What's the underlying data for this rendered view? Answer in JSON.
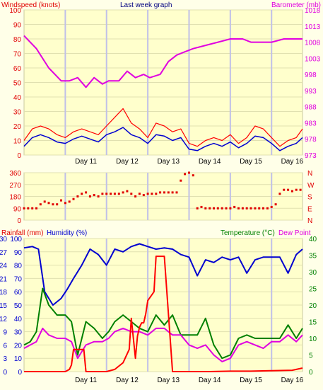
{
  "chart_data": [
    {
      "type": "line",
      "title": "Last week graph",
      "left_axis_label": "Windspeed (knots)",
      "right_axis_label": "Barometer (mb)",
      "left_ticks": [
        "0",
        "10",
        "20",
        "30",
        "40",
        "50",
        "60",
        "70",
        "80",
        "90",
        "100"
      ],
      "right_ticks": [
        "973",
        "978",
        "983",
        "988",
        "993",
        "998",
        "1003",
        "1008",
        "1013",
        "1018"
      ],
      "x_ticks": [
        "Day 11",
        "Day 12",
        "Day 13",
        "Day 14",
        "Day 15",
        "Day 16"
      ],
      "x_range_days": [
        10.0,
        16.75
      ],
      "left_range": [
        0,
        100
      ],
      "right_range": [
        973,
        1018
      ],
      "colors": {
        "barometer": "#e000e0",
        "gust": "#ff0000",
        "wind": "#0000d0"
      },
      "series": [
        {
          "key": "barometer",
          "x": [
            10.0,
            10.3,
            10.6,
            10.9,
            11.1,
            11.3,
            11.5,
            11.7,
            11.9,
            12.05,
            12.3,
            12.5,
            12.7,
            12.9,
            13.05,
            13.3,
            13.5,
            13.7,
            13.9,
            14.1,
            14.4,
            14.7,
            15.0,
            15.3,
            15.5,
            15.7,
            16.0,
            16.3,
            16.55,
            16.75
          ],
          "y": [
            1010,
            1006,
            1000,
            996,
            996,
            997,
            994,
            997,
            995,
            996,
            996,
            999,
            997,
            998,
            997,
            998,
            1002,
            1004,
            1005,
            1006,
            1007,
            1008,
            1009,
            1009,
            1008,
            1008,
            1008,
            1009,
            1009,
            1009
          ]
        },
        {
          "key": "gust",
          "x": [
            10.0,
            10.2,
            10.4,
            10.6,
            10.8,
            11.0,
            11.2,
            11.4,
            11.6,
            11.8,
            12.0,
            12.2,
            12.4,
            12.6,
            12.8,
            13.0,
            13.2,
            13.4,
            13.6,
            13.8,
            14.0,
            14.2,
            14.4,
            14.6,
            14.8,
            15.0,
            15.2,
            15.4,
            15.6,
            15.8,
            16.0,
            16.2,
            16.4,
            16.6,
            16.75
          ],
          "y": [
            10,
            18,
            20,
            18,
            14,
            12,
            16,
            18,
            16,
            14,
            20,
            26,
            32,
            22,
            18,
            12,
            22,
            20,
            16,
            18,
            8,
            6,
            10,
            12,
            10,
            14,
            8,
            12,
            20,
            18,
            12,
            6,
            10,
            12,
            18
          ]
        },
        {
          "key": "wind",
          "x": [
            10.0,
            10.2,
            10.4,
            10.6,
            10.8,
            11.0,
            11.2,
            11.4,
            11.6,
            11.8,
            12.0,
            12.2,
            12.4,
            12.6,
            12.8,
            13.0,
            13.2,
            13.4,
            13.6,
            13.8,
            14.0,
            14.2,
            14.4,
            14.6,
            14.8,
            15.0,
            15.2,
            15.4,
            15.6,
            15.8,
            16.0,
            16.2,
            16.4,
            16.6,
            16.75
          ],
          "y": [
            6,
            12,
            14,
            12,
            9,
            8,
            11,
            13,
            11,
            9,
            14,
            16,
            19,
            14,
            12,
            8,
            14,
            13,
            10,
            12,
            4,
            3,
            6,
            8,
            6,
            9,
            5,
            8,
            13,
            12,
            8,
            3,
            6,
            8,
            12
          ]
        }
      ]
    },
    {
      "type": "scatter",
      "left_ticks": [
        "0",
        "90",
        "180",
        "270",
        "360"
      ],
      "right_ticks": [
        "N",
        "E",
        "S",
        "W",
        "N"
      ],
      "left_range": [
        0,
        360
      ],
      "x_ticks": [
        "Day 11",
        "Day 12",
        "Day 13",
        "Day 14",
        "Day 15",
        "Day 16"
      ],
      "color": "#e00000",
      "series": [
        {
          "key": "direction",
          "x": [
            10.0,
            10.1,
            10.2,
            10.3,
            10.4,
            10.5,
            10.6,
            10.7,
            10.8,
            10.9,
            11.0,
            11.1,
            11.2,
            11.3,
            11.4,
            11.5,
            11.6,
            11.7,
            11.8,
            11.9,
            12.0,
            12.1,
            12.2,
            12.3,
            12.4,
            12.5,
            12.6,
            12.7,
            12.8,
            12.9,
            13.0,
            13.1,
            13.2,
            13.3,
            13.4,
            13.5,
            13.6,
            13.7,
            13.8,
            13.9,
            14.0,
            14.1,
            14.2,
            14.3,
            14.4,
            14.5,
            14.6,
            14.7,
            14.8,
            14.9,
            15.0,
            15.1,
            15.2,
            15.3,
            15.4,
            15.5,
            15.6,
            15.7,
            15.8,
            15.9,
            16.0,
            16.1,
            16.2,
            16.3,
            16.4,
            16.5,
            16.6,
            16.7
          ],
          "y": [
            90,
            90,
            90,
            90,
            120,
            140,
            130,
            120,
            120,
            150,
            130,
            140,
            160,
            180,
            200,
            210,
            180,
            190,
            180,
            200,
            200,
            200,
            200,
            200,
            210,
            220,
            200,
            180,
            200,
            190,
            200,
            200,
            200,
            210,
            210,
            210,
            210,
            210,
            300,
            350,
            360,
            340,
            90,
            100,
            90,
            90,
            90,
            90,
            90,
            90,
            90,
            100,
            90,
            90,
            90,
            90,
            90,
            90,
            90,
            90,
            100,
            120,
            200,
            230,
            230,
            220,
            230,
            230
          ]
        }
      ]
    },
    {
      "type": "line",
      "left_axis_label": "Rainfall (mm)",
      "middle_axis_label": "Humidity (%)",
      "right_axis_label": "Temperature (°C)",
      "right2_axis_label": "Dew Point",
      "rain_ticks": [
        "0",
        "3",
        "6",
        "9",
        "12",
        "15",
        "18",
        "21",
        "24",
        "27",
        "30"
      ],
      "humidity_ticks": [
        "0",
        "10",
        "20",
        "30",
        "40",
        "50",
        "60",
        "70",
        "80",
        "90",
        "100"
      ],
      "temp_ticks": [
        "0",
        "5",
        "10",
        "15",
        "20",
        "25",
        "30",
        "35",
        "40"
      ],
      "x_ticks": [
        "Day 11",
        "Day 12",
        "Day 13",
        "Day 14",
        "Day 15",
        "Day 16"
      ],
      "rain_range": [
        0,
        30
      ],
      "humidity_range": [
        0,
        100
      ],
      "temp_range": [
        0,
        40
      ],
      "colors": {
        "rain": "#ff0000",
        "humidity": "#0000d0",
        "temperature": "#008000",
        "dewpoint": "#e000e0"
      },
      "series": [
        {
          "key": "humidity",
          "x": [
            10.0,
            10.2,
            10.35,
            10.5,
            10.7,
            10.9,
            11.05,
            11.2,
            11.4,
            11.6,
            11.8,
            12.0,
            12.2,
            12.4,
            12.6,
            12.8,
            13.0,
            13.2,
            13.4,
            13.6,
            13.8,
            14.0,
            14.2,
            14.4,
            14.6,
            14.8,
            15.0,
            15.2,
            15.4,
            15.6,
            15.8,
            16.0,
            16.2,
            16.4,
            16.6,
            16.75
          ],
          "y": [
            93,
            94,
            92,
            60,
            50,
            55,
            62,
            70,
            80,
            92,
            88,
            80,
            92,
            90,
            94,
            96,
            94,
            92,
            93,
            92,
            88,
            86,
            72,
            84,
            82,
            86,
            84,
            86,
            74,
            84,
            86,
            86,
            86,
            74,
            88,
            92
          ]
        },
        {
          "key": "temperature",
          "x": [
            10.0,
            10.15,
            10.3,
            10.45,
            10.6,
            10.8,
            11.0,
            11.15,
            11.3,
            11.5,
            11.7,
            11.9,
            12.05,
            12.2,
            12.4,
            12.6,
            12.8,
            13.0,
            13.2,
            13.4,
            13.6,
            13.8,
            14.0,
            14.2,
            14.4,
            14.6,
            14.8,
            15.0,
            15.2,
            15.4,
            15.6,
            15.8,
            16.0,
            16.2,
            16.4,
            16.6,
            16.75
          ],
          "y": [
            8,
            9,
            12,
            25,
            20,
            17,
            17,
            15,
            5,
            15,
            13,
            10,
            12,
            15,
            17,
            15,
            13,
            12,
            17,
            14,
            17,
            11,
            11,
            11,
            16,
            8,
            4,
            5,
            10,
            11,
            10,
            10,
            10,
            10,
            14,
            10,
            13
          ]
        },
        {
          "key": "dewpoint",
          "x": [
            10.0,
            10.15,
            10.3,
            10.45,
            10.6,
            10.8,
            11.0,
            11.15,
            11.3,
            11.5,
            11.7,
            11.9,
            12.05,
            12.2,
            12.4,
            12.6,
            12.8,
            13.0,
            13.2,
            13.4,
            13.6,
            13.8,
            14.0,
            14.2,
            14.4,
            14.6,
            14.8,
            15.0,
            15.2,
            15.4,
            15.6,
            15.8,
            16.0,
            16.2,
            16.4,
            16.6,
            16.75
          ],
          "y": [
            7,
            8,
            9,
            13,
            11,
            10,
            10,
            9,
            4,
            8,
            9,
            9,
            10,
            12,
            13,
            12,
            12,
            11,
            13,
            13,
            11,
            11,
            8,
            7,
            8,
            5,
            3,
            4,
            8,
            9,
            8,
            7,
            9,
            9,
            11,
            9,
            11
          ]
        },
        {
          "key": "rain",
          "x": [
            10.0,
            10.5,
            11.0,
            11.1,
            11.15,
            11.2,
            11.45,
            11.5,
            12.0,
            12.2,
            12.4,
            12.55,
            12.6,
            12.7,
            12.75,
            12.8,
            12.85,
            12.9,
            12.95,
            13.0,
            13.15,
            13.2,
            13.4,
            13.6,
            14.0,
            14.5,
            15.0,
            15.5,
            16.0,
            16.5,
            16.75
          ],
          "y": [
            0,
            0,
            0,
            0.5,
            1.5,
            5,
            5,
            0,
            0,
            0.5,
            2,
            5,
            12,
            3,
            8,
            10,
            11,
            11,
            13,
            16,
            18,
            26,
            26,
            0,
            0,
            0,
            0.1,
            0.1,
            0.2,
            0.3,
            0.8
          ]
        }
      ]
    }
  ]
}
